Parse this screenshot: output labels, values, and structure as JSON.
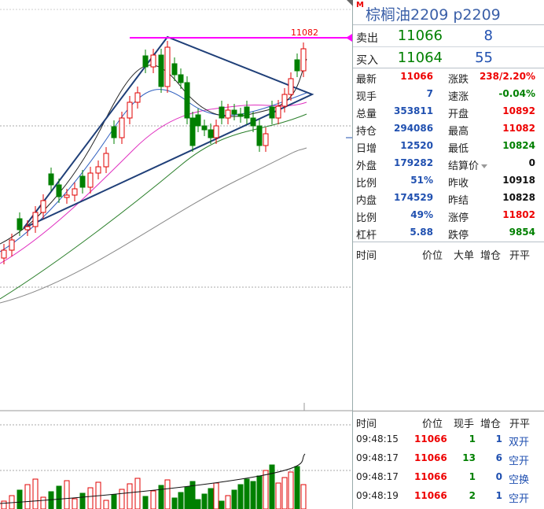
{
  "instrument": {
    "marker": "M",
    "name": "棕榈油2209",
    "code": "p2209"
  },
  "chart": {
    "high_label": "11082"
  },
  "orderbook": {
    "ask": {
      "label": "卖出",
      "price": "11066",
      "volume": "8"
    },
    "bid": {
      "label": "买入",
      "price": "11064",
      "volume": "55"
    }
  },
  "stats": [
    {
      "l1": "最新",
      "v1": "11066",
      "c1": "red",
      "l2": "涨跌",
      "v2": "238/2.20%",
      "c2": "red"
    },
    {
      "l1": "现手",
      "v1": "7",
      "c1": "blue",
      "l2": "速涨",
      "v2": "-0.04%",
      "c2": "green"
    },
    {
      "l1": "总量",
      "v1": "353811",
      "c1": "blue",
      "l2": "开盘",
      "v2": "10892",
      "c2": "red"
    },
    {
      "l1": "持仓",
      "v1": "294086",
      "c1": "blue",
      "l2": "最高",
      "v2": "11082",
      "c2": "red"
    },
    {
      "l1": "日增",
      "v1": "12520",
      "c1": "blue",
      "l2": "最低",
      "v2": "10824",
      "c2": "green"
    },
    {
      "l1": "外盘",
      "v1": "179282",
      "c1": "blue",
      "l2": "结算价",
      "v2": "0",
      "c2": "black"
    },
    {
      "l1": "比例",
      "v1": "51%",
      "c1": "blue",
      "l2": "昨收",
      "v2": "10918",
      "c2": "black"
    },
    {
      "l1": "内盘",
      "v1": "174529",
      "c1": "blue",
      "l2": "昨结",
      "v2": "10828",
      "c2": "black"
    },
    {
      "l1": "比例",
      "v1": "49%",
      "c1": "blue",
      "l2": "涨停",
      "v2": "11802",
      "c2": "red"
    },
    {
      "l1": "杠杆",
      "v1": "5.88",
      "c1": "blue",
      "l2": "跌停",
      "v2": "9854",
      "c2": "green"
    }
  ],
  "ticks_header_top": {
    "time": "时间",
    "price": "价位",
    "big": "大单",
    "oi": "增仓",
    "type": "开平"
  },
  "ticks_header_bottom": {
    "time": "时间",
    "price": "价位",
    "vol": "现手",
    "oi": "增仓",
    "type": "开平"
  },
  "ticks": [
    {
      "time": "09:48:15",
      "price": "11066",
      "vol": "1",
      "oi": "1",
      "type": "双开"
    },
    {
      "time": "09:48:17",
      "price": "11066",
      "vol": "13",
      "oi": "6",
      "type": "空开"
    },
    {
      "time": "09:48:17",
      "price": "11066",
      "vol": "1",
      "oi": "0",
      "type": "空换"
    },
    {
      "time": "09:48:19",
      "price": "11066",
      "vol": "2",
      "oi": "1",
      "type": "空开"
    }
  ],
  "colors": {
    "up": "#e00000",
    "down": "#008000",
    "accent": "#3a5fa8",
    "trendline": "#1f3f78",
    "magenta": "#ff00ff"
  }
}
